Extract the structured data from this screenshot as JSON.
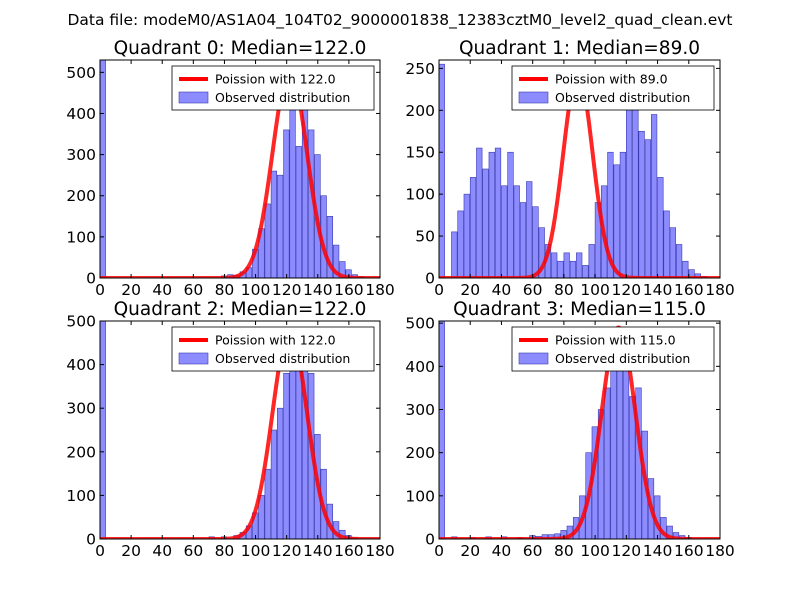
{
  "figure": {
    "suptitle": "Data file: modeM0/AS1A04_104T02_9000001838_12383cztM0_level2_quad_clean.evt"
  },
  "colors": {
    "bar_fill": "#8080ff",
    "bar_edge": "#3a3ab0",
    "poisson_line": "#ff0000",
    "axes": "#000000"
  },
  "chart_data": [
    {
      "type": "bar",
      "title": "Quadrant 0: Median=122.0",
      "xlim": [
        0,
        180
      ],
      "ylim": [
        0,
        530
      ],
      "xticks": [
        0,
        20,
        40,
        60,
        80,
        100,
        120,
        140,
        160,
        180
      ],
      "xtick_labels": [
        "0",
        "20",
        "40",
        "60",
        "80",
        "100",
        "120",
        "140",
        "160",
        "180"
      ],
      "yticks": [
        0,
        100,
        200,
        300,
        400,
        500
      ],
      "ytick_labels": [
        "0",
        "100",
        "200",
        "300",
        "400",
        "500"
      ],
      "legend": [
        "Poission with 122.0",
        "Observed distribution"
      ],
      "legend_loc": "upper right",
      "bar_width": 3.6,
      "bins": [
        {
          "x": 0,
          "y": 530
        },
        {
          "x": 78,
          "y": 5
        },
        {
          "x": 82,
          "y": 8
        },
        {
          "x": 86,
          "y": 6
        },
        {
          "x": 90,
          "y": 15
        },
        {
          "x": 94,
          "y": 25
        },
        {
          "x": 98,
          "y": 70
        },
        {
          "x": 102,
          "y": 120
        },
        {
          "x": 106,
          "y": 180
        },
        {
          "x": 110,
          "y": 260
        },
        {
          "x": 114,
          "y": 250
        },
        {
          "x": 118,
          "y": 360
        },
        {
          "x": 122,
          "y": 420
        },
        {
          "x": 126,
          "y": 320
        },
        {
          "x": 130,
          "y": 480
        },
        {
          "x": 134,
          "y": 360
        },
        {
          "x": 138,
          "y": 300
        },
        {
          "x": 142,
          "y": 200
        },
        {
          "x": 146,
          "y": 150
        },
        {
          "x": 150,
          "y": 80
        },
        {
          "x": 154,
          "y": 40
        },
        {
          "x": 158,
          "y": 20
        },
        {
          "x": 162,
          "y": 8
        },
        {
          "x": 166,
          "y": 3
        }
      ],
      "poisson": {
        "label": "Poission with 122.0",
        "mean": 122.0,
        "peak": 505
      }
    },
    {
      "type": "bar",
      "title": "Quadrant 1: Median=89.0",
      "xlim": [
        0,
        180
      ],
      "ylim": [
        0,
        260
      ],
      "xticks": [
        0,
        20,
        40,
        60,
        80,
        100,
        120,
        140,
        160,
        180
      ],
      "xtick_labels": [
        "0",
        "20",
        "40",
        "60",
        "80",
        "100",
        "120",
        "140",
        "160",
        "180"
      ],
      "yticks": [
        0,
        50,
        100,
        150,
        200,
        250
      ],
      "ytick_labels": [
        "0",
        "50",
        "100",
        "150",
        "200",
        "250"
      ],
      "legend": [
        "Poission with 89.0",
        "Observed distribution"
      ],
      "legend_loc": "upper right",
      "bar_width": 3.6,
      "bins": [
        {
          "x": 0,
          "y": 255
        },
        {
          "x": 4,
          "y": 0
        },
        {
          "x": 8,
          "y": 55
        },
        {
          "x": 12,
          "y": 80
        },
        {
          "x": 16,
          "y": 100
        },
        {
          "x": 20,
          "y": 120
        },
        {
          "x": 24,
          "y": 155
        },
        {
          "x": 28,
          "y": 130
        },
        {
          "x": 32,
          "y": 150
        },
        {
          "x": 36,
          "y": 155
        },
        {
          "x": 40,
          "y": 110
        },
        {
          "x": 44,
          "y": 150
        },
        {
          "x": 48,
          "y": 110
        },
        {
          "x": 52,
          "y": 90
        },
        {
          "x": 56,
          "y": 115
        },
        {
          "x": 60,
          "y": 85
        },
        {
          "x": 64,
          "y": 60
        },
        {
          "x": 68,
          "y": 40
        },
        {
          "x": 72,
          "y": 30
        },
        {
          "x": 76,
          "y": 20
        },
        {
          "x": 80,
          "y": 30
        },
        {
          "x": 84,
          "y": 20
        },
        {
          "x": 88,
          "y": 30
        },
        {
          "x": 92,
          "y": 15
        },
        {
          "x": 96,
          "y": 40
        },
        {
          "x": 100,
          "y": 90
        },
        {
          "x": 104,
          "y": 110
        },
        {
          "x": 108,
          "y": 150
        },
        {
          "x": 112,
          "y": 135
        },
        {
          "x": 116,
          "y": 150
        },
        {
          "x": 120,
          "y": 205
        },
        {
          "x": 124,
          "y": 225
        },
        {
          "x": 128,
          "y": 175
        },
        {
          "x": 132,
          "y": 165
        },
        {
          "x": 136,
          "y": 195
        },
        {
          "x": 140,
          "y": 120
        },
        {
          "x": 144,
          "y": 80
        },
        {
          "x": 148,
          "y": 60
        },
        {
          "x": 152,
          "y": 40
        },
        {
          "x": 156,
          "y": 20
        },
        {
          "x": 160,
          "y": 10
        },
        {
          "x": 164,
          "y": 5
        },
        {
          "x": 168,
          "y": 2
        }
      ],
      "poisson": {
        "label": "Poission with 89.0",
        "mean": 89.0,
        "peak": 245
      }
    },
    {
      "type": "bar",
      "title": "Quadrant 2: Median=122.0",
      "xlim": [
        0,
        180
      ],
      "ylim": [
        0,
        500
      ],
      "xticks": [
        0,
        20,
        40,
        60,
        80,
        100,
        120,
        140,
        160,
        180
      ],
      "xtick_labels": [
        "0",
        "20",
        "40",
        "60",
        "80",
        "100",
        "120",
        "140",
        "160",
        "180"
      ],
      "yticks": [
        0,
        100,
        200,
        300,
        400,
        500
      ],
      "ytick_labels": [
        "0",
        "100",
        "200",
        "300",
        "400",
        "500"
      ],
      "legend": [
        "Poission with 122.0",
        "Observed distribution"
      ],
      "legend_loc": "upper right",
      "bar_width": 3.6,
      "bins": [
        {
          "x": 0,
          "y": 500
        },
        {
          "x": 70,
          "y": 5
        },
        {
          "x": 78,
          "y": 5
        },
        {
          "x": 86,
          "y": 8
        },
        {
          "x": 90,
          "y": 15
        },
        {
          "x": 94,
          "y": 30
        },
        {
          "x": 98,
          "y": 60
        },
        {
          "x": 102,
          "y": 100
        },
        {
          "x": 106,
          "y": 160
        },
        {
          "x": 110,
          "y": 250
        },
        {
          "x": 114,
          "y": 300
        },
        {
          "x": 118,
          "y": 380
        },
        {
          "x": 122,
          "y": 460
        },
        {
          "x": 126,
          "y": 420
        },
        {
          "x": 130,
          "y": 480
        },
        {
          "x": 134,
          "y": 380
        },
        {
          "x": 138,
          "y": 240
        },
        {
          "x": 142,
          "y": 160
        },
        {
          "x": 146,
          "y": 80
        },
        {
          "x": 150,
          "y": 40
        },
        {
          "x": 154,
          "y": 20
        },
        {
          "x": 158,
          "y": 8
        },
        {
          "x": 162,
          "y": 3
        }
      ],
      "poisson": {
        "label": "Poission with 122.0",
        "mean": 122.0,
        "peak": 480
      }
    },
    {
      "type": "bar",
      "title": "Quadrant 3: Median=115.0",
      "xlim": [
        0,
        180
      ],
      "ylim": [
        0,
        505
      ],
      "xticks": [
        0,
        20,
        40,
        60,
        80,
        100,
        120,
        140,
        160,
        180
      ],
      "xtick_labels": [
        "0",
        "20",
        "40",
        "60",
        "80",
        "100",
        "120",
        "140",
        "160",
        "180"
      ],
      "yticks": [
        0,
        100,
        200,
        300,
        400,
        500
      ],
      "ytick_labels": [
        "0",
        "100",
        "200",
        "300",
        "400",
        "500"
      ],
      "legend": [
        "Poission with 115.0",
        "Observed distribution"
      ],
      "legend_loc": "upper right",
      "bar_width": 3.6,
      "bins": [
        {
          "x": 0,
          "y": 505
        },
        {
          "x": 8,
          "y": 5
        },
        {
          "x": 20,
          "y": 3
        },
        {
          "x": 30,
          "y": 5
        },
        {
          "x": 40,
          "y": 5
        },
        {
          "x": 50,
          "y": 3
        },
        {
          "x": 58,
          "y": 8
        },
        {
          "x": 62,
          "y": 6
        },
        {
          "x": 66,
          "y": 10
        },
        {
          "x": 70,
          "y": 10
        },
        {
          "x": 74,
          "y": 12
        },
        {
          "x": 78,
          "y": 20
        },
        {
          "x": 82,
          "y": 30
        },
        {
          "x": 86,
          "y": 50
        },
        {
          "x": 90,
          "y": 100
        },
        {
          "x": 94,
          "y": 200
        },
        {
          "x": 98,
          "y": 260
        },
        {
          "x": 102,
          "y": 300
        },
        {
          "x": 106,
          "y": 350
        },
        {
          "x": 110,
          "y": 440
        },
        {
          "x": 114,
          "y": 450
        },
        {
          "x": 118,
          "y": 400
        },
        {
          "x": 122,
          "y": 330
        },
        {
          "x": 126,
          "y": 350
        },
        {
          "x": 130,
          "y": 250
        },
        {
          "x": 134,
          "y": 140
        },
        {
          "x": 138,
          "y": 100
        },
        {
          "x": 142,
          "y": 50
        },
        {
          "x": 146,
          "y": 30
        },
        {
          "x": 150,
          "y": 15
        },
        {
          "x": 154,
          "y": 8
        },
        {
          "x": 158,
          "y": 4
        }
      ],
      "poisson": {
        "label": "Poission with 115.0",
        "mean": 115.0,
        "peak": 490
      }
    }
  ]
}
